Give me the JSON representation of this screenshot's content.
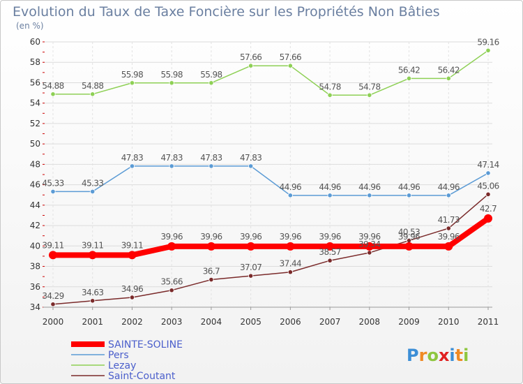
{
  "chart_data": {
    "type": "line",
    "title": "Evolution du Taux de Taxe Foncière sur les Propriétés Non Bâties",
    "subtitle": "(en %)",
    "xlabel": "",
    "ylabel": "",
    "ylim": [
      34,
      60
    ],
    "yticks": [
      34,
      36,
      38,
      40,
      42,
      44,
      46,
      48,
      50,
      52,
      54,
      56,
      58,
      60
    ],
    "categories": [
      "2000",
      "2001",
      "2002",
      "2003",
      "2004",
      "2005",
      "2006",
      "2007",
      "2008",
      "2009",
      "2010",
      "2011"
    ],
    "legend_position": "bottom-left",
    "series": [
      {
        "name": "SAINTE-SOLINE",
        "color": "#ff0000",
        "values": [
          39.11,
          39.11,
          39.11,
          39.96,
          39.96,
          39.96,
          39.96,
          39.96,
          39.96,
          39.96,
          39.96,
          42.7
        ],
        "labels": [
          "39.11",
          "39.11",
          "39.11",
          "39.96",
          "39.96",
          "39.96",
          "39.96",
          "39.96",
          "39.96",
          "39.96",
          "39.96",
          "42.7"
        ]
      },
      {
        "name": "Pers",
        "color": "#5b9bd5",
        "values": [
          45.33,
          45.33,
          47.83,
          47.83,
          47.83,
          47.83,
          44.96,
          44.96,
          44.96,
          44.96,
          44.96,
          47.14
        ],
        "labels": [
          "45.33",
          "45.33",
          "47.83",
          "47.83",
          "47.83",
          "47.83",
          "44.96",
          "44.96",
          "44.96",
          "44.96",
          "44.96",
          "47.14"
        ]
      },
      {
        "name": "Lezay",
        "color": "#8ed055",
        "values": [
          54.88,
          54.88,
          55.98,
          55.98,
          55.98,
          57.66,
          57.66,
          54.78,
          54.78,
          56.42,
          56.42,
          59.16
        ],
        "labels": [
          "54.88",
          "54.88",
          "55.98",
          "55.98",
          "55.98",
          "57.66",
          "57.66",
          "54.78",
          "54.78",
          "56.42",
          "56.42",
          "59.16"
        ]
      },
      {
        "name": "Saint-Coutant",
        "color": "#7a2a2a",
        "values": [
          34.29,
          34.63,
          34.96,
          35.66,
          36.7,
          37.07,
          37.44,
          38.57,
          39.34,
          40.53,
          41.73,
          45.06
        ],
        "labels": [
          "34.29",
          "34.63",
          "34.96",
          "35.66",
          "36.7",
          "37.07",
          "37.44",
          "38.57",
          "39.34",
          "40.53",
          "41.73",
          "45.06"
        ]
      }
    ]
  },
  "logo": {
    "text": "Proxiti",
    "letter_colors": [
      "#3c8ed6",
      "#f08a24",
      "#8ec63f",
      "#e02020",
      "#3c8ed6",
      "#f08a24",
      "#8ec63f"
    ]
  }
}
